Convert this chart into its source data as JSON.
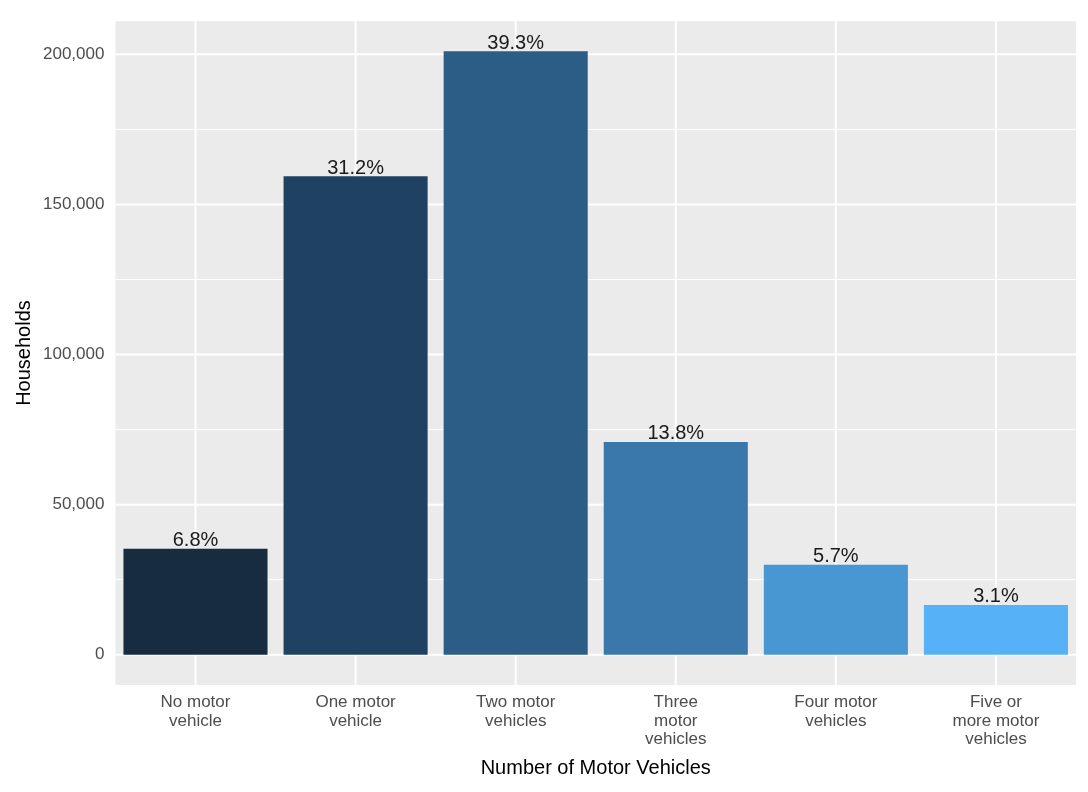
{
  "chart_data": {
    "type": "bar",
    "categories": [
      "No motor\nvehicle",
      "One motor\nvehicle",
      "Two motor\nvehicles",
      "Three\nmotor\nvehicles",
      "Four motor\nvehicles",
      "Five or\nmore motor\nvehicles"
    ],
    "values": [
      35300,
      159400,
      201000,
      70900,
      30000,
      16600
    ],
    "colors": [
      "#172b41",
      "#1f4263",
      "#2c5d87",
      "#3a78ab",
      "#4896d2",
      "#56b1f7"
    ],
    "annotations": [
      {
        "text": "6.8%",
        "x": "No motor\nvehicle",
        "y": 35300
      },
      {
        "text": "31.2%",
        "x": "One motor\nvehicle",
        "y": 159400
      },
      {
        "text": "39.3%",
        "x": "Two motor\nvehicles",
        "y": 201000
      },
      {
        "text": "13.8%",
        "x": "Three\nmotor\nvehicles",
        "y": 70900
      },
      {
        "text": "5.7%",
        "x": "Four motor\nvehicles",
        "y": 30000
      },
      {
        "text": "3.1%",
        "x": "Five or\nmore motor\nvehicles",
        "y": 16600
      }
    ],
    "xlabel": "Number of Motor Vehicles",
    "ylabel": "Households",
    "ylim": [
      -10050,
      211050
    ],
    "yticks": [
      {
        "value": 0,
        "label": "0"
      },
      {
        "value": 50000,
        "label": "50,000"
      },
      {
        "value": 100000,
        "label": "100,000"
      },
      {
        "value": 150000,
        "label": "150,000"
      },
      {
        "value": 200000,
        "label": "200,000"
      }
    ],
    "grid": true
  }
}
